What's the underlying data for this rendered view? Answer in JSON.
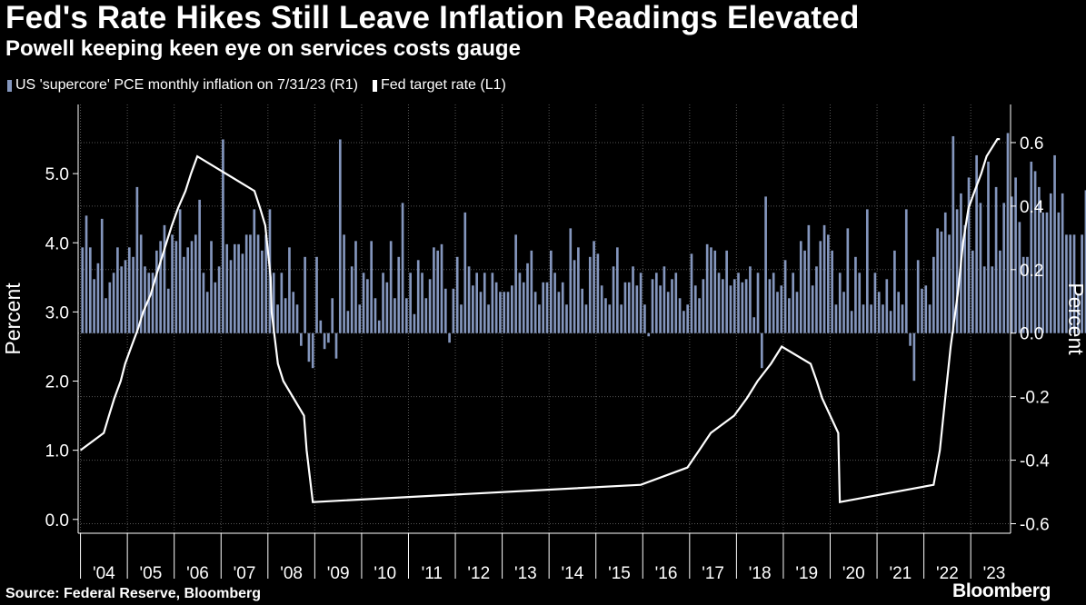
{
  "header": {
    "title": "Fed's Rate Hikes Still Leave Inflation Readings Elevated",
    "subtitle": "Powell keeping keen eye on services costs gauge"
  },
  "footer": {
    "source": "Source: Federal Reserve, Bloomberg",
    "brand": "Bloomberg"
  },
  "colors": {
    "background": "#000000",
    "bars": "#8496bd",
    "line": "#ffffff",
    "grid": "#555555"
  },
  "chart_data": {
    "type": "bar+line",
    "title": "Fed's Rate Hikes Still Leave Inflation Readings Elevated",
    "subtitle": "Powell keeping keen eye on services costs gauge",
    "legend_position": "top-left",
    "grid": true,
    "x": {
      "tick_labels": [
        "'04",
        "'05",
        "'06",
        "'07",
        "'08",
        "'09",
        "'10",
        "'11",
        "'12",
        "'13",
        "'14",
        "'15",
        "'16",
        "'17",
        "'18",
        "'19",
        "'20",
        "'21",
        "'22",
        "'23"
      ],
      "range": [
        2003.95,
        2023.85
      ]
    },
    "y_left": {
      "label": "Percent",
      "ticks": [
        "0.0",
        "1.0",
        "2.0",
        "3.0",
        "4.0",
        "5.0"
      ],
      "range": [
        -0.2,
        6.0
      ]
    },
    "y_right": {
      "label": "Percent",
      "ticks": [
        "-0.6",
        "-0.4",
        "-0.2",
        "0.0",
        "0.2",
        "0.4",
        "0.6"
      ],
      "range": [
        -0.63,
        0.72
      ]
    },
    "series": [
      {
        "name": "US 'supercore' PCE monthly inflation on 7/31/23 (R1)",
        "axis": "right",
        "kind": "bar",
        "start": "2004-01",
        "frequency": "monthly",
        "values": [
          0.27,
          0.37,
          0.27,
          0.17,
          0.22,
          0.36,
          0.11,
          0.16,
          0.19,
          0.27,
          0.21,
          0.23,
          0.27,
          0.24,
          0.46,
          0.31,
          0.21,
          0.19,
          0.19,
          0.26,
          0.29,
          0.34,
          0.14,
          0.31,
          0.29,
          0.39,
          0.24,
          0.27,
          0.29,
          0.31,
          0.42,
          0.19,
          0.13,
          0.29,
          0.16,
          0.21,
          0.61,
          0.28,
          0.23,
          0.28,
          0.28,
          0.25,
          0.31,
          0.31,
          0.39,
          0.31,
          0.26,
          0.31,
          0.39,
          0.19,
          0.09,
          0.19,
          0.11,
          0.27,
          0.13,
          0.09,
          -0.04,
          0.24,
          -0.09,
          -0.11,
          0.24,
          0.04,
          -0.05,
          -0.03,
          0.11,
          -0.08,
          0.61,
          0.31,
          0.07,
          0.21,
          0.29,
          0.09,
          0.19,
          0.17,
          0.29,
          0.11,
          0.04,
          0.19,
          0.16,
          0.29,
          0.11,
          0.24,
          0.41,
          0.11,
          0.19,
          0.06,
          0.23,
          0.19,
          0.11,
          0.17,
          0.27,
          0.26,
          0.28,
          0.14,
          -0.03,
          0.14,
          0.24,
          0.09,
          0.38,
          0.21,
          0.15,
          0.19,
          0.13,
          0.19,
          0.09,
          0.19,
          0.16,
          0.13,
          0.13,
          0.13,
          0.15,
          0.31,
          0.19,
          0.16,
          0.22,
          0.26,
          0.13,
          0.09,
          0.16,
          0.16,
          0.26,
          0.19,
          0.13,
          0.16,
          0.09,
          0.33,
          0.23,
          0.27,
          0.14,
          0.09,
          0.24,
          0.29,
          0.25,
          0.15,
          0.11,
          0.09,
          0.21,
          0.27,
          0.09,
          0.16,
          0.16,
          0.21,
          0.15,
          0.19,
          0.09,
          -0.01,
          0.17,
          0.19,
          0.15,
          0.21,
          0.13,
          0.17,
          0.19,
          0.11,
          0.07,
          0.09,
          0.25,
          0.15,
          0.11,
          0.17,
          0.28,
          0.27,
          0.26,
          0.19,
          0.17,
          0.26,
          0.15,
          0.17,
          0.19,
          0.16,
          0.17,
          0.21,
          0.05,
          0.19,
          -0.11,
          0.43,
          0.17,
          0.19,
          0.13,
          0.15,
          0.23,
          0.11,
          0.19,
          0.13,
          0.29,
          0.26,
          0.34,
          0.15,
          0.21,
          0.29,
          0.34,
          0.31,
          0.26,
          0.09,
          0.19,
          0.13,
          0.33,
          0.07,
          0.24,
          0.19,
          0.09,
          0.39,
          0.09,
          0.19,
          0.13,
          0.09,
          0.17,
          0.07,
          0.26,
          0.13,
          0.09,
          0.39,
          -0.04,
          -0.15,
          0.23,
          0.14,
          0.15,
          0.09,
          0.24,
          0.33,
          0.32,
          0.38,
          0.31,
          0.62,
          0.39,
          0.44,
          0.34,
          0.49,
          0.26,
          0.56,
          0.41,
          0.21,
          0.54,
          0.21,
          0.46,
          0.26,
          0.41,
          0.63,
          0.43,
          0.49,
          0.35,
          0.24,
          0.24,
          0.54,
          0.51,
          0.46,
          0.38,
          0.38,
          0.44,
          0.56,
          0.38,
          0.44,
          0.31,
          0.31,
          0.31,
          0.12,
          0.31,
          0.45,
          0.31
        ]
      },
      {
        "name": "Fed target rate (L1)",
        "axis": "left",
        "kind": "line",
        "steps": [
          [
            "2004-01-01",
            1.0
          ],
          [
            "2004-06-30",
            1.25
          ],
          [
            "2004-08-10",
            1.5
          ],
          [
            "2004-09-21",
            1.75
          ],
          [
            "2004-11-10",
            2.0
          ],
          [
            "2004-12-14",
            2.25
          ],
          [
            "2005-02-02",
            2.5
          ],
          [
            "2005-03-22",
            2.75
          ],
          [
            "2005-05-03",
            3.0
          ],
          [
            "2005-06-30",
            3.25
          ],
          [
            "2005-08-09",
            3.5
          ],
          [
            "2005-09-20",
            3.75
          ],
          [
            "2005-11-01",
            4.0
          ],
          [
            "2005-12-13",
            4.25
          ],
          [
            "2006-01-31",
            4.5
          ],
          [
            "2006-03-28",
            4.75
          ],
          [
            "2006-05-10",
            5.0
          ],
          [
            "2006-06-29",
            5.25
          ],
          [
            "2007-09-18",
            4.75
          ],
          [
            "2007-10-31",
            4.5
          ],
          [
            "2007-12-11",
            4.25
          ],
          [
            "2008-01-22",
            3.5
          ],
          [
            "2008-01-30",
            3.0
          ],
          [
            "2008-03-18",
            2.25
          ],
          [
            "2008-04-30",
            2.0
          ],
          [
            "2008-10-08",
            1.5
          ],
          [
            "2008-10-29",
            1.0
          ],
          [
            "2008-12-16",
            0.25
          ],
          [
            "2015-12-16",
            0.5
          ],
          [
            "2016-12-14",
            0.75
          ],
          [
            "2017-03-15",
            1.0
          ],
          [
            "2017-06-14",
            1.25
          ],
          [
            "2017-12-13",
            1.5
          ],
          [
            "2018-03-21",
            1.75
          ],
          [
            "2018-06-13",
            2.0
          ],
          [
            "2018-09-26",
            2.25
          ],
          [
            "2018-12-19",
            2.5
          ],
          [
            "2019-07-31",
            2.25
          ],
          [
            "2019-09-18",
            2.0
          ],
          [
            "2019-10-30",
            1.75
          ],
          [
            "2020-03-03",
            1.25
          ],
          [
            "2020-03-15",
            0.25
          ],
          [
            "2022-03-16",
            0.5
          ],
          [
            "2022-05-04",
            1.0
          ],
          [
            "2022-06-15",
            1.75
          ],
          [
            "2022-07-27",
            2.5
          ],
          [
            "2022-09-21",
            3.25
          ],
          [
            "2022-11-02",
            4.0
          ],
          [
            "2022-12-14",
            4.5
          ],
          [
            "2023-02-01",
            4.75
          ],
          [
            "2023-03-22",
            5.0
          ],
          [
            "2023-05-03",
            5.25
          ],
          [
            "2023-07-26",
            5.5
          ],
          [
            "2023-08-15",
            5.5
          ]
        ]
      }
    ]
  }
}
